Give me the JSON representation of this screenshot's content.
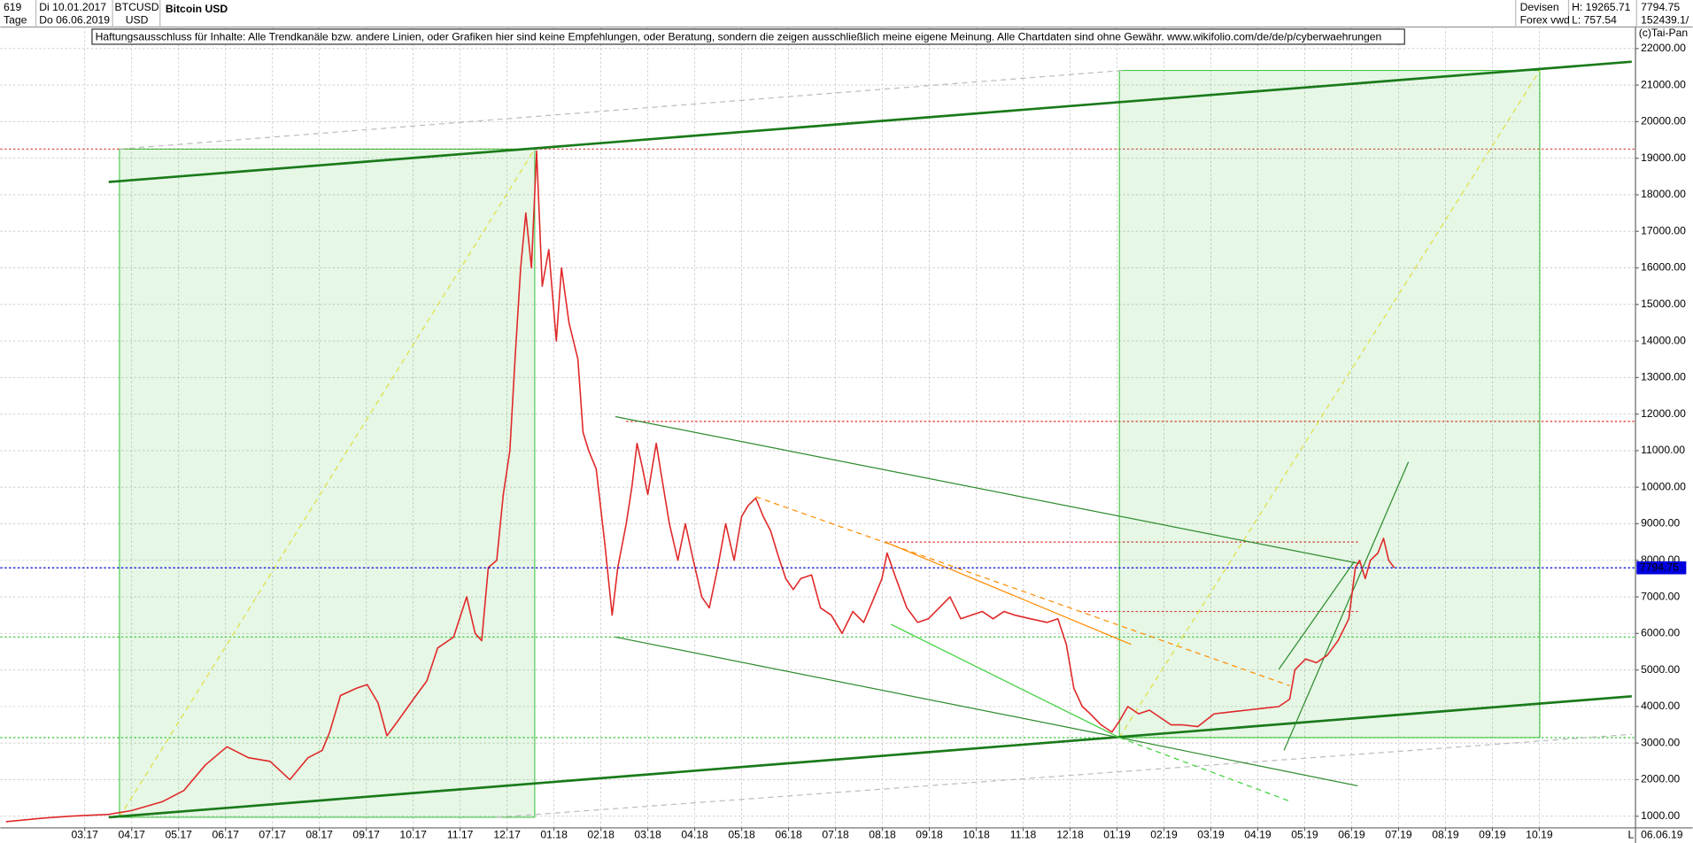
{
  "header": {
    "count": "619",
    "start": "Di 10.01.2017",
    "period": "Tage",
    "end": "Do 06.06.2019",
    "symbol": "BTCUSD",
    "currency": "USD",
    "name": "Bitcoin USD",
    "market": "Devisen",
    "source": "Forex vwd",
    "high": "H: 19265.71",
    "low": "L: 757.54",
    "last": "7794.75",
    "volume": "152439.1/",
    "copyright": "(c)Tai-Pan",
    "disclaimer": "Haftungsausschluss für Inhalte: Alle Trendkanäle bzw. andere Linien, oder Grafiken hier sind keine Empfehlungen, oder Beratung, sondern die zeigen ausschließlich meine eigene Meinung. Alle Chartdaten sind ohne Gewähr.  www.wikifolio.com/de/de/p/cyberwaehrungen",
    "end_short": "06.06.19",
    "mode": "L"
  },
  "chart_data": {
    "type": "line",
    "color": "#e02828",
    "x": [
      -1.68,
      -0.87,
      -0.3,
      0.51,
      0.99,
      1.66,
      2.11,
      2.57,
      3.03,
      3.49,
      3.95,
      4.37,
      4.76,
      5.06,
      5.22,
      5.45,
      5.79,
      6.02,
      6.25,
      6.44,
      6.67,
      7.06,
      7.29,
      7.52,
      7.86,
      8.14,
      8.32,
      8.46,
      8.6,
      8.78,
      8.92,
      9.06,
      9.17,
      9.29,
      9.4,
      9.52,
      9.63,
      9.75,
      9.89,
      10.05,
      10.16,
      10.32,
      10.51,
      10.62,
      10.74,
      10.9,
      11.08,
      11.24,
      11.36,
      11.54,
      11.66,
      11.77,
      11.89,
      12.0,
      12.18,
      12.28,
      12.46,
      12.64,
      12.8,
      12.97,
      13.15,
      13.31,
      13.49,
      13.66,
      13.84,
      14.0,
      14.14,
      14.3,
      14.46,
      14.62,
      14.76,
      14.94,
      15.1,
      15.26,
      15.49,
      15.68,
      15.91,
      16.14,
      16.37,
      16.6,
      16.83,
      16.99,
      17.1,
      17.29,
      17.52,
      17.75,
      17.98,
      18.21,
      18.44,
      18.67,
      18.9,
      19.13,
      19.36,
      19.59,
      19.82,
      20.16,
      20.51,
      20.74,
      20.92,
      21.08,
      21.26,
      21.43,
      21.66,
      21.89,
      22.05,
      22.23,
      22.46,
      22.69,
      22.92,
      23.15,
      23.38,
      23.72,
      24.07,
      24.41,
      24.76,
      25.1,
      25.45,
      25.68,
      25.79,
      26.02,
      26.25,
      26.48,
      26.71,
      26.94,
      27.08,
      27.17,
      27.29,
      27.4,
      27.56,
      27.68,
      27.79,
      27.91
    ],
    "values": [
      850,
      950,
      1000,
      1050,
      1150,
      1400,
      1700,
      2400,
      2900,
      2600,
      2500,
      2000,
      2600,
      2800,
      3300,
      4300,
      4500,
      4600,
      4100,
      3200,
      3600,
      4300,
      4700,
      5600,
      5900,
      7000,
      6000,
      5800,
      7800,
      8000,
      9800,
      11000,
      13500,
      16000,
      17500,
      16000,
      19200,
      15500,
      16500,
      14000,
      16000,
      14500,
      13500,
      11500,
      11000,
      10500,
      8500,
      6500,
      7800,
      9000,
      10000,
      11200,
      10500,
      9800,
      11200,
      10400,
      9000,
      8000,
      9000,
      8000,
      7000,
      6700,
      7800,
      9000,
      8000,
      9200,
      9500,
      9700,
      9200,
      8800,
      8200,
      7500,
      7200,
      7500,
      7600,
      6700,
      6500,
      6000,
      6600,
      6300,
      7000,
      7500,
      8200,
      7500,
      6700,
      6300,
      6400,
      6700,
      7000,
      6400,
      6500,
      6600,
      6400,
      6600,
      6500,
      6400,
      6300,
      6400,
      5700,
      4500,
      4000,
      3800,
      3500,
      3300,
      3600,
      4000,
      3800,
      3900,
      3700,
      3500,
      3500,
      3450,
      3800,
      3850,
      3900,
      3950,
      4000,
      4200,
      5000,
      5300,
      5200,
      5400,
      5800,
      6400,
      7800,
      8000,
      7500,
      8000,
      8200,
      8600,
      8000,
      7794.75
    ],
    "xlim": [
      -1.8,
      33.05
    ],
    "xticks": [
      {
        "value": 0,
        "label": "03.17"
      },
      {
        "value": 1,
        "label": "04.17"
      },
      {
        "value": 2,
        "label": "05.17"
      },
      {
        "value": 3,
        "label": "06.17"
      },
      {
        "value": 4,
        "label": "07.17"
      },
      {
        "value": 5,
        "label": "08.17"
      },
      {
        "value": 6,
        "label": "09.17"
      },
      {
        "value": 7,
        "label": "10.17"
      },
      {
        "value": 8,
        "label": "11.17"
      },
      {
        "value": 9,
        "label": "12.17"
      },
      {
        "value": 10,
        "label": "01.18"
      },
      {
        "value": 11,
        "label": "02.18"
      },
      {
        "value": 12,
        "label": "03.18"
      },
      {
        "value": 13,
        "label": "04.18"
      },
      {
        "value": 14,
        "label": "05.18"
      },
      {
        "value": 15,
        "label": "06.18"
      },
      {
        "value": 16,
        "label": "07.18"
      },
      {
        "value": 17,
        "label": "08.18"
      },
      {
        "value": 18,
        "label": "09.18"
      },
      {
        "value": 19,
        "label": "10.18"
      },
      {
        "value": 20,
        "label": "11.18"
      },
      {
        "value": 21,
        "label": "12.18"
      },
      {
        "value": 22,
        "label": "01.19"
      },
      {
        "value": 23,
        "label": "02.19"
      },
      {
        "value": 24,
        "label": "03.19"
      },
      {
        "value": 25,
        "label": "04.19"
      },
      {
        "value": 26,
        "label": "05.19"
      },
      {
        "value": 27,
        "label": "06.19"
      },
      {
        "value": 28,
        "label": "07.19"
      },
      {
        "value": 29,
        "label": "08.19"
      },
      {
        "value": 30,
        "label": "09.19"
      },
      {
        "value": 31,
        "label": "10.19"
      }
    ],
    "ylim": [
      680,
      22590
    ],
    "yticks": [
      {
        "value": 1000,
        "label": "1000.00"
      },
      {
        "value": 2000,
        "label": "2000.00"
      },
      {
        "value": 3000,
        "label": "3000.00"
      },
      {
        "value": 4000,
        "label": "4000.00"
      },
      {
        "value": 5000,
        "label": "5000.00"
      },
      {
        "value": 6000,
        "label": "6000.00"
      },
      {
        "value": 7000,
        "label": "7000.00"
      },
      {
        "value": 8000,
        "label": "8000.00"
      },
      {
        "value": 9000,
        "label": "9000.00"
      },
      {
        "value": 10000,
        "label": "10000.00"
      },
      {
        "value": 11000,
        "label": "11000.00"
      },
      {
        "value": 12000,
        "label": "12000.00"
      },
      {
        "value": 13000,
        "label": "13000.00"
      },
      {
        "value": 14000,
        "label": "14000.00"
      },
      {
        "value": 15000,
        "label": "15000.00"
      },
      {
        "value": 16000,
        "label": "16000.00"
      },
      {
        "value": 17000,
        "label": "17000.00"
      },
      {
        "value": 18000,
        "label": "18000.00"
      },
      {
        "value": 19000,
        "label": "19000.00"
      },
      {
        "value": 20000,
        "label": "20000.00"
      },
      {
        "value": 21000,
        "label": "21000.00"
      },
      {
        "value": 22000,
        "label": "22000.00"
      }
    ],
    "grid": true,
    "last_price": 7794.75,
    "last_color": "#0000dd",
    "hlines": [
      {
        "value": 19250,
        "color": "#e05050"
      },
      {
        "value": 11800,
        "color": "#e03030",
        "x": [
          11.54,
          33.05
        ]
      },
      {
        "value": 8500,
        "color": "#e03030",
        "x": [
          17.06,
          27.17
        ]
      },
      {
        "value": 6600,
        "color": "#e03030",
        "x": [
          21.2,
          27.17
        ]
      },
      {
        "value": 5900,
        "color": "#3cc83c"
      },
      {
        "value": 3150,
        "color": "#3cc83c"
      }
    ],
    "drawings": [
      {
        "kind": "rect",
        "x": [
          0.74,
          9.59
        ],
        "y": [
          970,
          19250
        ],
        "color": "#2fbf2f"
      },
      {
        "kind": "rect",
        "x": [
          22.05,
          31.01
        ],
        "y": [
          3150,
          21400
        ],
        "color": "#2fbf2f"
      },
      {
        "kind": "dash",
        "x": [
          0.74,
          9.59
        ],
        "y": [
          970,
          19250
        ],
        "color": "#e0e040"
      },
      {
        "kind": "dash",
        "x": [
          22.05,
          31.01
        ],
        "y": [
          3150,
          21400
        ],
        "color": "#e0e040"
      },
      {
        "kind": "dash",
        "x": [
          0.74,
          22.11
        ],
        "y": [
          19250,
          21400
        ],
        "color": "#bbbbbb"
      },
      {
        "kind": "dash",
        "x": [
          8.78,
          32.97
        ],
        "y": [
          970,
          3240
        ],
        "color": "#bbbbbb"
      },
      {
        "kind": "thick",
        "x": [
          0.51,
          32.97
        ],
        "y": [
          18350,
          21640
        ],
        "color": "#1a7a1a"
      },
      {
        "kind": "thick",
        "x": [
          0.51,
          32.97
        ],
        "y": [
          970,
          4280
        ],
        "color": "#1a7a1a"
      },
      {
        "kind": "line",
        "x": [
          11.31,
          27.17
        ],
        "y": [
          11930,
          7910
        ],
        "color": "#2e8b2e"
      },
      {
        "kind": "line",
        "x": [
          11.31,
          22.05
        ],
        "y": [
          5900,
          3150
        ],
        "color": "#2e8b2e"
      },
      {
        "kind": "line",
        "x": [
          22.05,
          27.13
        ],
        "y": [
          3150,
          1830
        ],
        "color": "#2e8b2e"
      },
      {
        "kind": "dash",
        "x": [
          22.05,
          25.68
        ],
        "y": [
          3150,
          1410
        ],
        "color": "#3cd13c"
      },
      {
        "kind": "line",
        "x": [
          17.18,
          22.05
        ],
        "y": [
          6250,
          3150
        ],
        "color": "#3cd13c"
      },
      {
        "kind": "line",
        "x": [
          17.06,
          22.3
        ],
        "y": [
          8500,
          5700
        ],
        "color": "#ff8c00"
      },
      {
        "kind": "dash",
        "x": [
          14.3,
          25.68
        ],
        "y": [
          9740,
          4570
        ],
        "color": "#ff8c00"
      },
      {
        "kind": "line",
        "x": [
          25.56,
          28.21
        ],
        "y": [
          2800,
          10690
        ],
        "color": "#2e8b2e"
      },
      {
        "kind": "line",
        "x": [
          25.45,
          27.06
        ],
        "y": [
          5020,
          7970
        ],
        "color": "#2e8b2e"
      }
    ]
  }
}
